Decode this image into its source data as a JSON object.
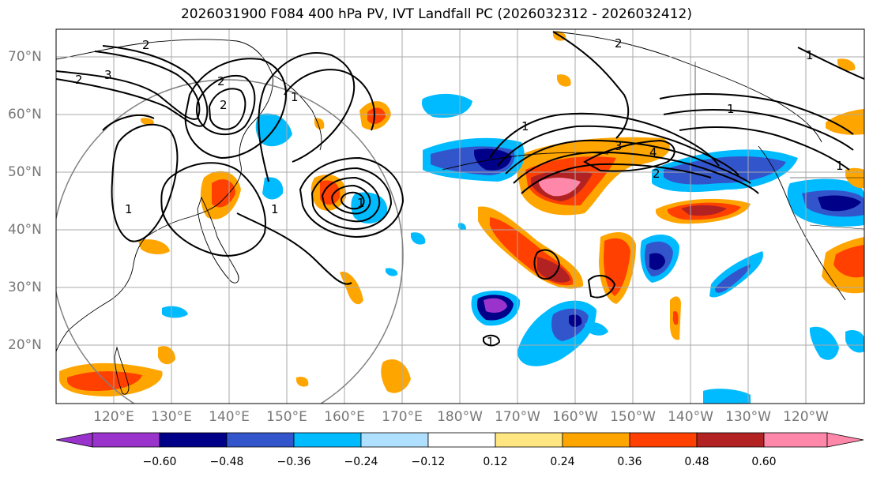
{
  "title": "2026031900 F084 400 hPa PV, IVT Landfall PC (2026032312 - 2026032412)",
  "lat_labels": [
    "70°N",
    "60°N",
    "50°N",
    "40°N",
    "30°N",
    "20°N"
  ],
  "lon_labels": [
    "120°E",
    "130°E",
    "140°E",
    "150°E",
    "160°E",
    "170°E",
    "180°W",
    "170°W",
    "160°W",
    "150°W",
    "140°W",
    "130°W",
    "120°W"
  ],
  "colorbar": {
    "ticks": [
      "−0.60",
      "−0.48",
      "−0.36",
      "−0.24",
      "−0.12",
      "0.12",
      "0.24",
      "0.36",
      "0.48",
      "0.60"
    ],
    "colors": [
      "#9933cc",
      "#000088",
      "#3355cc",
      "#00bbff",
      "#b0e0ff",
      "#ffffff",
      "#ffe680",
      "#ffa500",
      "#ff4000",
      "#b22222",
      "#ff88aa"
    ]
  },
  "contour_labels": [
    "2",
    "3",
    "2",
    "2",
    "1",
    "2",
    "1",
    "1",
    "1",
    "2",
    "3",
    "4",
    "2",
    "1",
    "1",
    "1",
    "1",
    "1"
  ]
}
